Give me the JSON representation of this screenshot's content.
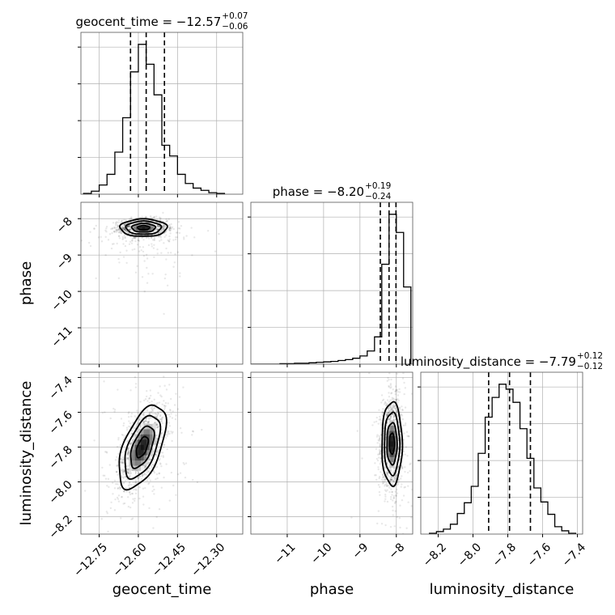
{
  "chart_data": {
    "type": "corner",
    "parameters": [
      "geocent_time",
      "phase",
      "luminosity_distance"
    ],
    "axis_labels": [
      "geocent_time",
      "phase",
      "luminosity_distance"
    ],
    "grid": true,
    "colors": {
      "lines": "#000000",
      "grid": "#b0b0b0",
      "samples": "#000000"
    },
    "ranges": {
      "geocent_time": [
        -12.82,
        -12.2
      ],
      "phase": [
        -12.0,
        -7.55
      ],
      "luminosity_distance": [
        -8.3,
        -7.37
      ]
    },
    "ticks": {
      "geocent_time": {
        "values": [
          -12.75,
          -12.6,
          -12.45,
          -12.3
        ],
        "labels": [
          "−12.75",
          "−12.60",
          "−12.45",
          "−12.30"
        ]
      },
      "phase": {
        "values": [
          -11,
          -10,
          -9,
          -8
        ],
        "labels": [
          "−11",
          "−10",
          "−9",
          "−8"
        ]
      },
      "luminosity_distance": {
        "values": [
          -8.2,
          -8.0,
          -7.8,
          -7.6,
          -7.4
        ],
        "labels": [
          "−8.2",
          "−8.0",
          "−7.8",
          "−7.6",
          "−7.4"
        ]
      }
    },
    "titles": [
      {
        "param": "geocent_time",
        "text": "geocent_time = −12.57",
        "plus": "+0.07",
        "minus": "−0.06"
      },
      {
        "param": "phase",
        "text": "phase = −8.20",
        "plus": "+0.19",
        "minus": "−0.24"
      },
      {
        "param": "luminosity_distance",
        "text": "luminosity_distance = −7.79",
        "plus": "+0.12",
        "minus": "−0.12"
      }
    ],
    "quantiles": {
      "geocent_time": [
        -12.63,
        -12.57,
        -12.5
      ],
      "phase": [
        -8.44,
        -8.2,
        -8.01
      ],
      "luminosity_distance": [
        -7.91,
        -7.79,
        -7.67
      ]
    },
    "histograms": {
      "geocent_time": {
        "edges": [
          -12.81,
          -12.78,
          -12.75,
          -12.72,
          -12.69,
          -12.66,
          -12.63,
          -12.6,
          -12.57,
          -12.54,
          -12.51,
          -12.48,
          -12.45,
          -12.42,
          -12.39,
          -12.36,
          -12.33,
          -12.3,
          -12.27
        ],
        "counts": [
          1,
          4,
          12,
          26,
          55,
          100,
          160,
          196,
          170,
          130,
          64,
          50,
          26,
          14,
          8,
          5,
          2,
          1
        ]
      },
      "phase": {
        "edges": [
          -12.0,
          -11.8,
          -11.6,
          -11.4,
          -11.2,
          -11.0,
          -10.8,
          -10.6,
          -10.4,
          -10.2,
          -10.0,
          -9.8,
          -9.6,
          -9.4,
          -9.2,
          -9.0,
          -8.8,
          -8.6,
          -8.4,
          -8.2,
          -8.0,
          -7.8,
          -7.6
        ],
        "counts": [
          0,
          0,
          0,
          0,
          1,
          1,
          2,
          2,
          3,
          4,
          5,
          6,
          8,
          10,
          13,
          18,
          29,
          60,
          220,
          330,
          290,
          170
        ]
      },
      "luminosity_distance": {
        "edges": [
          -8.25,
          -8.21,
          -8.17,
          -8.13,
          -8.09,
          -8.05,
          -8.01,
          -7.97,
          -7.93,
          -7.89,
          -7.85,
          -7.81,
          -7.77,
          -7.73,
          -7.69,
          -7.65,
          -7.61,
          -7.57,
          -7.53,
          -7.49,
          -7.45,
          -7.41
        ],
        "counts": [
          1,
          3,
          6,
          12,
          25,
          38,
          58,
          98,
          142,
          166,
          182,
          176,
          160,
          128,
          92,
          56,
          39,
          24,
          9,
          4,
          1
        ]
      }
    },
    "joint": [
      {
        "x": "geocent_time",
        "y": "phase",
        "mean": [
          -12.58,
          -8.25
        ],
        "sd": [
          0.045,
          0.12
        ],
        "corr": 0.0
      },
      {
        "x": "geocent_time",
        "y": "luminosity_distance",
        "mean": [
          -12.585,
          -7.8
        ],
        "sd": [
          0.045,
          0.12
        ],
        "corr": 0.55
      },
      {
        "x": "phase",
        "y": "luminosity_distance",
        "mean": [
          -8.12,
          -7.78
        ],
        "sd": [
          0.14,
          0.12
        ],
        "corr": 0.0
      }
    ]
  }
}
